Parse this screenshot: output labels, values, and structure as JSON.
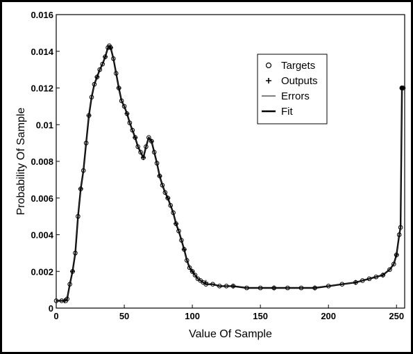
{
  "chart_data": {
    "type": "line",
    "title": "",
    "xlabel": "Value Of Sample",
    "ylabel": "Probability Of Sample",
    "xlim": [
      0,
      256
    ],
    "ylim": [
      0,
      0.016
    ],
    "xticks": [
      0,
      50,
      100,
      150,
      200,
      250
    ],
    "xtick_labels": [
      "0",
      "50",
      "100",
      "150",
      "200",
      "250"
    ],
    "yticks": [
      0,
      0.002,
      0.004,
      0.006,
      0.008,
      0.01,
      0.012,
      0.014,
      0.016
    ],
    "ytick_labels": [
      "0",
      "0.002",
      "0.004",
      "0.006",
      "0.008",
      "0.01",
      "0.012",
      "0.014",
      "0.016"
    ],
    "grid": false,
    "legend_position": "top-right",
    "legend": [
      "Targets",
      "Outputs",
      "Errors",
      "Fit"
    ],
    "series": [
      {
        "name": "Targets",
        "marker": "circle",
        "x": [
          0,
          4,
          7,
          8,
          10,
          12,
          14,
          16,
          18,
          20,
          22,
          24,
          26,
          28,
          30,
          32,
          34,
          36,
          38,
          39,
          40,
          42,
          44,
          46,
          48,
          50,
          52,
          54,
          56,
          58,
          60,
          62,
          64,
          66,
          68,
          70,
          72,
          74,
          76,
          78,
          80,
          82,
          84,
          86,
          88,
          90,
          92,
          94,
          96,
          98,
          100,
          102,
          104,
          106,
          108,
          110,
          115,
          120,
          125,
          130,
          140,
          150,
          160,
          170,
          180,
          190,
          200,
          210,
          220,
          225,
          230,
          235,
          240,
          245,
          248,
          250,
          252,
          253,
          254,
          255
        ],
        "y": [
          0.0004,
          0.0004,
          0.0004,
          0.0005,
          0.0013,
          0.002,
          0.003,
          0.005,
          0.0065,
          0.0075,
          0.009,
          0.0105,
          0.0115,
          0.0122,
          0.0126,
          0.013,
          0.0133,
          0.0137,
          0.0142,
          0.0143,
          0.0142,
          0.0136,
          0.0128,
          0.012,
          0.0113,
          0.011,
          0.0106,
          0.0101,
          0.0097,
          0.0093,
          0.0088,
          0.0085,
          0.0082,
          0.0088,
          0.0093,
          0.0091,
          0.0085,
          0.0079,
          0.0072,
          0.0067,
          0.0063,
          0.006,
          0.0056,
          0.0052,
          0.0046,
          0.0042,
          0.0037,
          0.0032,
          0.0026,
          0.0022,
          0.002,
          0.0018,
          0.0016,
          0.0015,
          0.0014,
          0.0013,
          0.0013,
          0.0012,
          0.0012,
          0.0012,
          0.0011,
          0.0011,
          0.0011,
          0.0011,
          0.0011,
          0.0011,
          0.0012,
          0.0013,
          0.0014,
          0.0015,
          0.0016,
          0.0017,
          0.0018,
          0.0021,
          0.0024,
          0.0029,
          0.004,
          0.0044,
          0.012,
          0.012
        ]
      },
      {
        "name": "Outputs",
        "marker": "plus",
        "x": [
          6,
          12,
          18,
          24,
          30,
          36,
          40,
          46,
          52,
          58,
          64,
          70,
          76,
          82,
          88,
          94,
          100,
          110,
          130,
          160,
          190,
          220,
          240,
          250
        ],
        "y": [
          0.0004,
          0.002,
          0.0065,
          0.0105,
          0.0126,
          0.0137,
          0.0142,
          0.012,
          0.0106,
          0.0093,
          0.0082,
          0.0091,
          0.0072,
          0.006,
          0.0046,
          0.0032,
          0.002,
          0.0014,
          0.0012,
          0.0011,
          0.0011,
          0.0014,
          0.0018,
          0.0029
        ]
      },
      {
        "name": "Errors",
        "style": "thin-line"
      },
      {
        "name": "Fit",
        "style": "thick-line"
      }
    ]
  }
}
